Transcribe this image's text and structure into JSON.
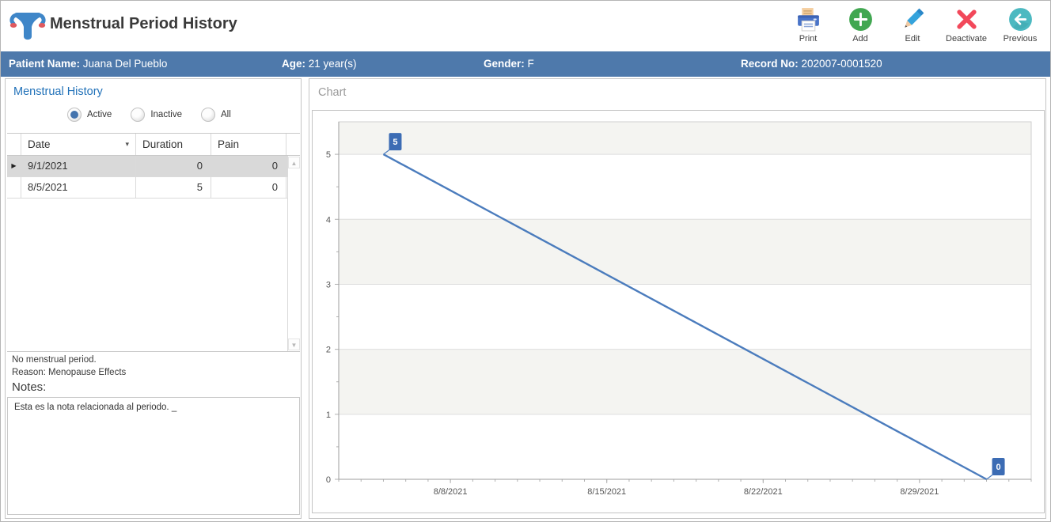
{
  "header": {
    "title": "Menstrual Period History",
    "toolbar": [
      {
        "id": "print",
        "label": "Print"
      },
      {
        "id": "add",
        "label": "Add"
      },
      {
        "id": "edit",
        "label": "Edit"
      },
      {
        "id": "deactivate",
        "label": "Deactivate"
      },
      {
        "id": "previous",
        "label": "Previous"
      }
    ]
  },
  "patient_bar": {
    "name_label": "Patient Name:",
    "name_value": "Juana Del Pueblo",
    "age_label": "Age:",
    "age_value": "21 year(s)",
    "gender_label": "Gender:",
    "gender_value": "F",
    "record_label": "Record No:",
    "record_value": "202007-0001520"
  },
  "left_panel": {
    "title": "Menstrual History",
    "filters": [
      {
        "label": "Active",
        "selected": true
      },
      {
        "label": "Inactive",
        "selected": false
      },
      {
        "label": "All",
        "selected": false
      }
    ],
    "table": {
      "columns": [
        "Date",
        "Duration",
        "Pain"
      ],
      "rows": [
        {
          "date": "9/1/2021",
          "duration": "0",
          "pain": "0",
          "selected": true
        },
        {
          "date": "8/5/2021",
          "duration": "5",
          "pain": "0",
          "selected": false
        }
      ]
    },
    "status_lines": [
      "No menstrual period.",
      "Reason: Menopause Effects"
    ],
    "notes_label": "Notes:",
    "notes_text": "Esta es la nota relacionada al periodo. _"
  },
  "chart_panel": {
    "title": "Chart"
  },
  "chart_data": {
    "type": "line",
    "title": "Chart",
    "points": [
      {
        "date": "8/5/2021",
        "value": 5
      },
      {
        "date": "9/1/2021",
        "value": 0
      }
    ],
    "x_tick_labels": [
      "8/8/2021",
      "8/15/2021",
      "8/22/2021",
      "8/29/2021"
    ],
    "y_ticks": [
      0,
      1,
      2,
      3,
      4,
      5
    ],
    "ylim": [
      0,
      5.5
    ],
    "x_range": [
      "8/3/2021",
      "9/3/2021"
    ],
    "striped_bands": [
      [
        1,
        2
      ],
      [
        3,
        4
      ],
      [
        5,
        5.5
      ]
    ],
    "grid": true,
    "legend": "none",
    "colors": {
      "line": "#4b7cbd",
      "label_bg": "#3c6cb4",
      "band": "#f4f4f1",
      "gridline": "#dedede",
      "axis": "#9e9e9e",
      "tick": "#b0b0b0",
      "tick_text": "#555555"
    }
  },
  "icons": {
    "sort_arrow": "▾",
    "row_marker": "▶",
    "scroll_up": "▲",
    "scroll_down": "▼"
  },
  "colors": {
    "patient_bar": "#4e79ab",
    "section_title_blue": "#2272b9",
    "add_green": "#41a751",
    "deactivate_red": "#f2485a",
    "previous_teal": "#4cb9c1",
    "print_blue": "#4a74c8",
    "edit_blue": "#35a3dc"
  }
}
